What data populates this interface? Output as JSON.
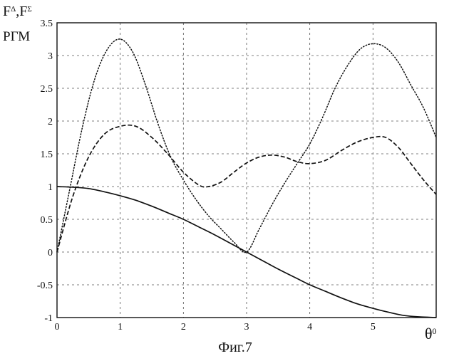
{
  "chart_data": {
    "type": "line",
    "ylabel_top": "F",
    "ylabel_sup1": "Δ",
    "ylabel_sep": ",F",
    "ylabel_sup2": "Σ",
    "ylabel_bottom": "РГМ",
    "xlabel_base": "θ",
    "xlabel_sup": "0",
    "caption": "Фиг.7",
    "xlim": [
      0,
      6
    ],
    "ylim": [
      -1,
      3.5
    ],
    "xticks": [
      "0",
      "1",
      "2",
      "3",
      "4",
      "5"
    ],
    "yticks": [
      "-1",
      "-0.5",
      "0",
      "0.5",
      "1",
      "1.5",
      "2",
      "2.5",
      "3",
      "3.5"
    ],
    "grid": true,
    "series": [
      {
        "style": "solid",
        "x": [
          0,
          0.25,
          0.5,
          0.75,
          1,
          1.25,
          1.5,
          1.75,
          2,
          2.25,
          2.5,
          2.75,
          3,
          3.25,
          3.5,
          3.75,
          4,
          4.25,
          4.5,
          4.75,
          5,
          5.25,
          5.5,
          5.75,
          6
        ],
        "y": [
          1,
          0.99,
          0.97,
          0.92,
          0.86,
          0.79,
          0.7,
          0.6,
          0.5,
          0.38,
          0.26,
          0.13,
          0,
          -0.13,
          -0.26,
          -0.38,
          -0.5,
          -0.6,
          -0.7,
          -0.79,
          -0.86,
          -0.92,
          -0.97,
          -0.99,
          -1
        ]
      },
      {
        "style": "dashed",
        "x": [
          0,
          0.25,
          0.5,
          0.75,
          1,
          1.25,
          1.5,
          1.75,
          2,
          2.25,
          2.4,
          2.6,
          2.8,
          3,
          3.2,
          3.4,
          3.6,
          3.8,
          4,
          4.25,
          4.5,
          4.75,
          5,
          5.2,
          5.4,
          5.6,
          5.8,
          6
        ],
        "y": [
          0,
          0.85,
          1.45,
          1.8,
          1.92,
          1.92,
          1.75,
          1.5,
          1.22,
          1.02,
          1,
          1.07,
          1.22,
          1.36,
          1.45,
          1.48,
          1.45,
          1.38,
          1.35,
          1.4,
          1.55,
          1.68,
          1.75,
          1.75,
          1.6,
          1.35,
          1.1,
          0.88
        ]
      },
      {
        "style": "dotted",
        "x": [
          0,
          0.2,
          0.4,
          0.6,
          0.8,
          1,
          1.2,
          1.4,
          1.6,
          1.8,
          2,
          2.2,
          2.4,
          2.6,
          2.8,
          3,
          3.2,
          3.4,
          3.6,
          3.8,
          4,
          4.2,
          4.4,
          4.6,
          4.8,
          5,
          5.2,
          5.4,
          5.6,
          5.8,
          6
        ],
        "y": [
          0,
          0.95,
          1.9,
          2.65,
          3.1,
          3.25,
          3.05,
          2.55,
          1.95,
          1.45,
          1.1,
          0.8,
          0.55,
          0.35,
          0.15,
          0,
          0.35,
          0.72,
          1.05,
          1.35,
          1.65,
          2.05,
          2.5,
          2.85,
          3.1,
          3.18,
          3.12,
          2.9,
          2.55,
          2.2,
          1.75
        ]
      }
    ]
  }
}
